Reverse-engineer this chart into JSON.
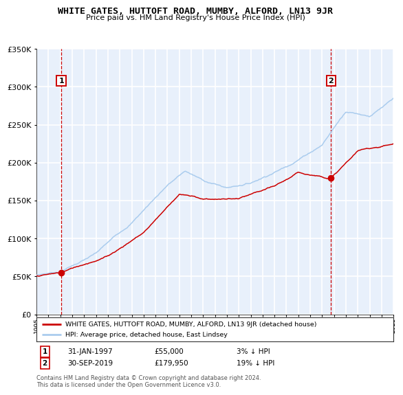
{
  "title": "WHITE GATES, HUTTOFT ROAD, MUMBY, ALFORD, LN13 9JR",
  "subtitle": "Price paid vs. HM Land Registry's House Price Index (HPI)",
  "legend_label_red": "WHITE GATES, HUTTOFT ROAD, MUMBY, ALFORD, LN13 9JR (detached house)",
  "legend_label_blue": "HPI: Average price, detached house, East Lindsey",
  "footnote": "Contains HM Land Registry data © Crown copyright and database right 2024.\nThis data is licensed under the Open Government Licence v3.0.",
  "sale1_label": "1",
  "sale1_date": "31-JAN-1997",
  "sale1_price": "£55,000",
  "sale1_hpi": "3% ↓ HPI",
  "sale1_year": 1997.08,
  "sale1_value": 55000,
  "sale2_label": "2",
  "sale2_date": "30-SEP-2019",
  "sale2_price": "£179,950",
  "sale2_hpi": "19% ↓ HPI",
  "sale2_year": 2019.75,
  "sale2_value": 179950,
  "ylim": [
    0,
    350000
  ],
  "xlim_start": 1995,
  "xlim_end": 2025,
  "background_color": "#E8F0FB",
  "grid_color": "#FFFFFF",
  "red_line_color": "#CC0000",
  "blue_line_color": "#AACCEE"
}
